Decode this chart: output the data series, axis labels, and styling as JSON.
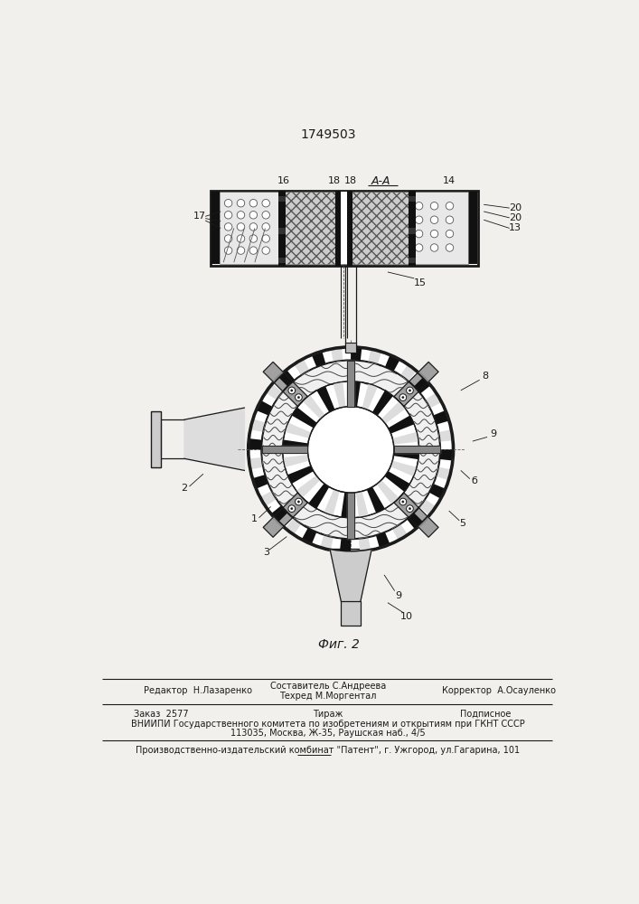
{
  "title": "1749503",
  "fig_caption": "Фиг. 2",
  "bg_color": "#f2f0ed",
  "line_color": "#1a1a1a",
  "footer_editor": "Редактор  Н.Лазаренко",
  "footer_composer": "Составитель С.Андреева",
  "footer_tech": "Техред М.Моргентал",
  "footer_corrector": "Корректор  А.Осауленко",
  "footer_order": "Заказ  2577",
  "footer_tirazh": "Тираж",
  "footer_podp": "Подписное",
  "footer_vniipи": "ВНИИПИ Государственного комитета по изобретениям и открытиям при ГКНТ СССР",
  "footer_addr": "113035, Москва, Ж-35, Раушская наб., 4/5",
  "footer_pub": "Производственно-издательский комбинат \"Патент\", г. Ужгород, ул.Гагарина, 101"
}
